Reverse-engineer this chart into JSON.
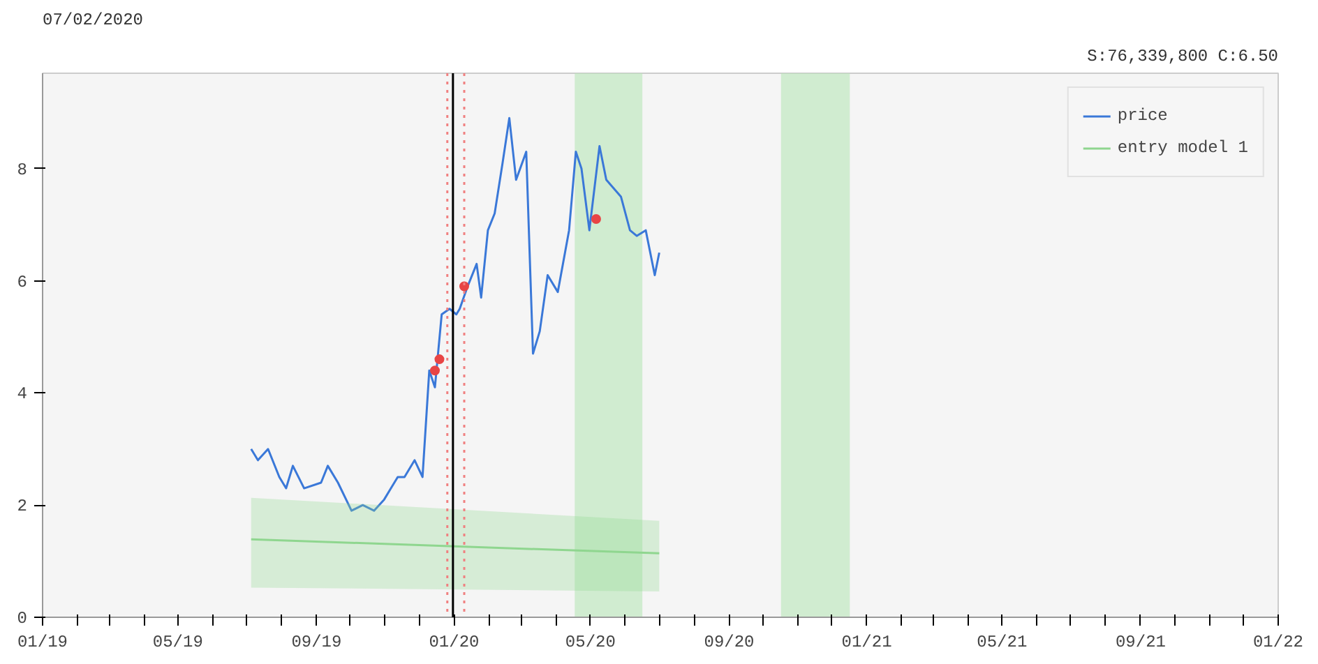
{
  "chart_data": {
    "type": "line",
    "title": "07/02/2020",
    "subtitle": "S:76,339,800 C:6.50",
    "xlim": [
      "2019-01-01",
      "2022-01-01"
    ],
    "ylim": [
      0,
      9.7
    ],
    "yticks": [
      0,
      2,
      4,
      6,
      8
    ],
    "xticks": [
      {
        "value": "2019-01",
        "label": "01/19"
      },
      {
        "value": "2019-02",
        "label": null
      },
      {
        "value": "2019-03",
        "label": null
      },
      {
        "value": "2019-04",
        "label": null
      },
      {
        "value": "2019-05",
        "label": "05/19"
      },
      {
        "value": "2019-06",
        "label": null
      },
      {
        "value": "2019-07",
        "label": null
      },
      {
        "value": "2019-08",
        "label": null
      },
      {
        "value": "2019-09",
        "label": "09/19"
      },
      {
        "value": "2019-10",
        "label": null
      },
      {
        "value": "2019-11",
        "label": null
      },
      {
        "value": "2019-12",
        "label": null
      },
      {
        "value": "2020-01",
        "label": "01/20"
      },
      {
        "value": "2020-02",
        "label": null
      },
      {
        "value": "2020-03",
        "label": null
      },
      {
        "value": "2020-04",
        "label": null
      },
      {
        "value": "2020-05",
        "label": "05/20"
      },
      {
        "value": "2020-06",
        "label": null
      },
      {
        "value": "2020-07",
        "label": null
      },
      {
        "value": "2020-08",
        "label": null
      },
      {
        "value": "2020-09",
        "label": "09/20"
      },
      {
        "value": "2020-10",
        "label": null
      },
      {
        "value": "2020-11",
        "label": null
      },
      {
        "value": "2020-12",
        "label": null
      },
      {
        "value": "2021-01",
        "label": "01/21"
      },
      {
        "value": "2021-02",
        "label": null
      },
      {
        "value": "2021-03",
        "label": null
      },
      {
        "value": "2021-04",
        "label": null
      },
      {
        "value": "2021-05",
        "label": "05/21"
      },
      {
        "value": "2021-06",
        "label": null
      },
      {
        "value": "2021-07",
        "label": null
      },
      {
        "value": "2021-08",
        "label": null
      },
      {
        "value": "2021-09",
        "label": "09/21"
      },
      {
        "value": "2021-10",
        "label": null
      },
      {
        "value": "2021-11",
        "label": null
      },
      {
        "value": "2021-12",
        "label": null
      },
      {
        "value": "2022-01",
        "label": "01/22"
      }
    ],
    "grid": false,
    "legend": "top right",
    "marker": "none",
    "line_style": "solid",
    "series": [
      {
        "name": "price",
        "color": "#3a78d8",
        "x": [
          "2019-07-05",
          "2019-07-11",
          "2019-07-20",
          "2019-07-30",
          "2019-08-05",
          "2019-08-11",
          "2019-08-21",
          "2019-09-05",
          "2019-09-11",
          "2019-09-20",
          "2019-10-02",
          "2019-10-12",
          "2019-10-22",
          "2019-10-31",
          "2019-11-06",
          "2019-11-12",
          "2019-11-18",
          "2019-11-27",
          "2019-12-04",
          "2019-12-10",
          "2019-12-15",
          "2019-12-21",
          "2019-12-28",
          "2020-01-03",
          "2020-01-06",
          "2020-01-13",
          "2020-01-21",
          "2020-01-25",
          "2020-01-31",
          "2020-02-06",
          "2020-02-13",
          "2020-02-19",
          "2020-02-25",
          "2020-03-05",
          "2020-03-11",
          "2020-03-17",
          "2020-03-24",
          "2020-04-02",
          "2020-04-12",
          "2020-04-18",
          "2020-04-23",
          "2020-04-30",
          "2020-05-09",
          "2020-05-15",
          "2020-05-28",
          "2020-06-05",
          "2020-06-11",
          "2020-06-19",
          "2020-06-27",
          "2020-07-01"
        ],
        "values": [
          3.0,
          2.8,
          3.0,
          2.5,
          2.3,
          2.7,
          2.3,
          2.4,
          2.7,
          2.4,
          1.9,
          2.0,
          1.9,
          2.1,
          2.3,
          2.5,
          2.5,
          2.8,
          2.5,
          4.4,
          4.1,
          5.4,
          5.5,
          5.4,
          5.5,
          5.9,
          6.3,
          5.7,
          6.9,
          7.2,
          8.1,
          8.9,
          7.8,
          8.3,
          4.7,
          5.1,
          6.1,
          5.8,
          6.9,
          8.3,
          8.0,
          6.9,
          8.4,
          7.8,
          7.5,
          6.9,
          6.8,
          6.9,
          6.1,
          6.5
        ]
      },
      {
        "name": "entry model 1",
        "color": "#8fd68f",
        "x": [
          "2019-07-05",
          "2020-07-01"
        ],
        "values": [
          1.39,
          1.14
        ],
        "lower": [
          0.53,
          0.46
        ],
        "upper": [
          2.13,
          1.72
        ]
      },
      {
        "type": "scatter",
        "marker": "circle",
        "color": "#e84545",
        "x": [
          "2019-12-15",
          "2019-12-19",
          "2020-01-10",
          "2020-05-06"
        ],
        "values": [
          4.4,
          4.6,
          5.9,
          7.1
        ]
      }
    ],
    "ref_lines": [
      {
        "axis": "x",
        "value": "2019-12-26",
        "color": "#f08080",
        "line_style": "dotted"
      },
      {
        "axis": "x",
        "value": "2019-12-31",
        "color": "#000000",
        "line_style": "solid"
      },
      {
        "axis": "x",
        "value": "2020-01-10",
        "color": "#f08080",
        "line_style": "dotted"
      }
    ],
    "bands": [
      {
        "axis": "x",
        "from": "2020-04-17",
        "to": "2020-06-16",
        "color": "#b8e6b8"
      },
      {
        "axis": "x",
        "from": "2020-10-17",
        "to": "2020-12-17",
        "color": "#b8e6b8"
      }
    ]
  }
}
